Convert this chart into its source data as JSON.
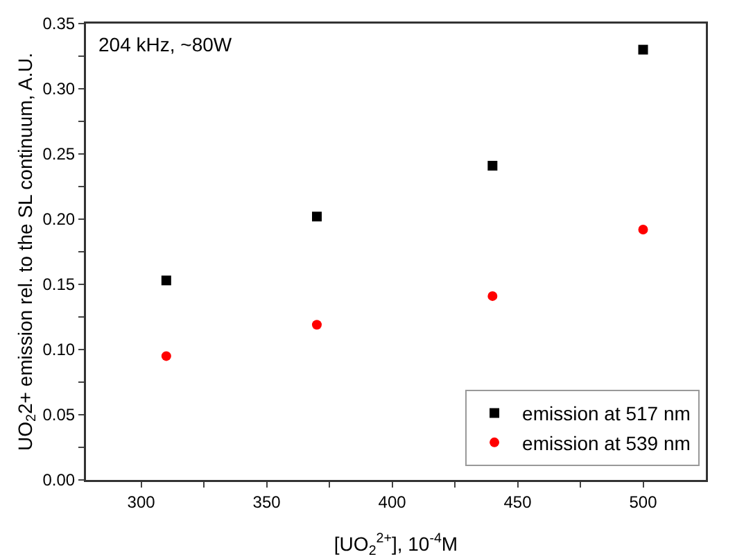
{
  "chart_data": {
    "type": "scatter",
    "xlabel": "[UO$_{2}$$^{2+}$], 10$^{-4}$M",
    "ylabel": "UO$_{2}$2+ emission rel. to the SL continuum, A.U.",
    "annotations": [
      "204 kHz, ~80W"
    ],
    "x": [
      310,
      370,
      440,
      500
    ],
    "series": [
      {
        "name": "emission at 517 nm",
        "color": "#000000",
        "marker": "square",
        "values": [
          0.153,
          0.202,
          0.241,
          0.33
        ]
      },
      {
        "name": "emission at 539 nm",
        "color": "#ff0000",
        "marker": "circle",
        "values": [
          0.095,
          0.119,
          0.141,
          0.192
        ]
      }
    ],
    "xlim": [
      278,
      525
    ],
    "xticks": [
      300,
      {
        "value": 325,
        "label": null
      },
      350,
      {
        "value": 375,
        "label": null
      },
      400,
      {
        "value": 425,
        "label": null
      },
      450,
      {
        "value": 475,
        "label": null
      },
      500
    ],
    "ylim": [
      0,
      0.35
    ],
    "yticks": [
      {
        "value": 0,
        "label": "0.00"
      },
      {
        "value": 0.025,
        "label": null
      },
      {
        "value": 0.05,
        "label": "0.05"
      },
      {
        "value": 0.075,
        "label": null
      },
      {
        "value": 0.1,
        "label": "0.10"
      },
      {
        "value": 0.125,
        "label": null
      },
      {
        "value": 0.15,
        "label": "0.15"
      },
      {
        "value": 0.175,
        "label": null
      },
      {
        "value": 0.2,
        "label": "0.20"
      },
      {
        "value": 0.225,
        "label": null
      },
      {
        "value": 0.25,
        "label": "0.25"
      },
      {
        "value": 0.275,
        "label": null
      },
      {
        "value": 0.3,
        "label": "0.30"
      },
      {
        "value": 0.325,
        "label": null
      },
      {
        "value": 0.35,
        "label": "0.35"
      }
    ],
    "grid": false,
    "legend": "bottom right"
  }
}
